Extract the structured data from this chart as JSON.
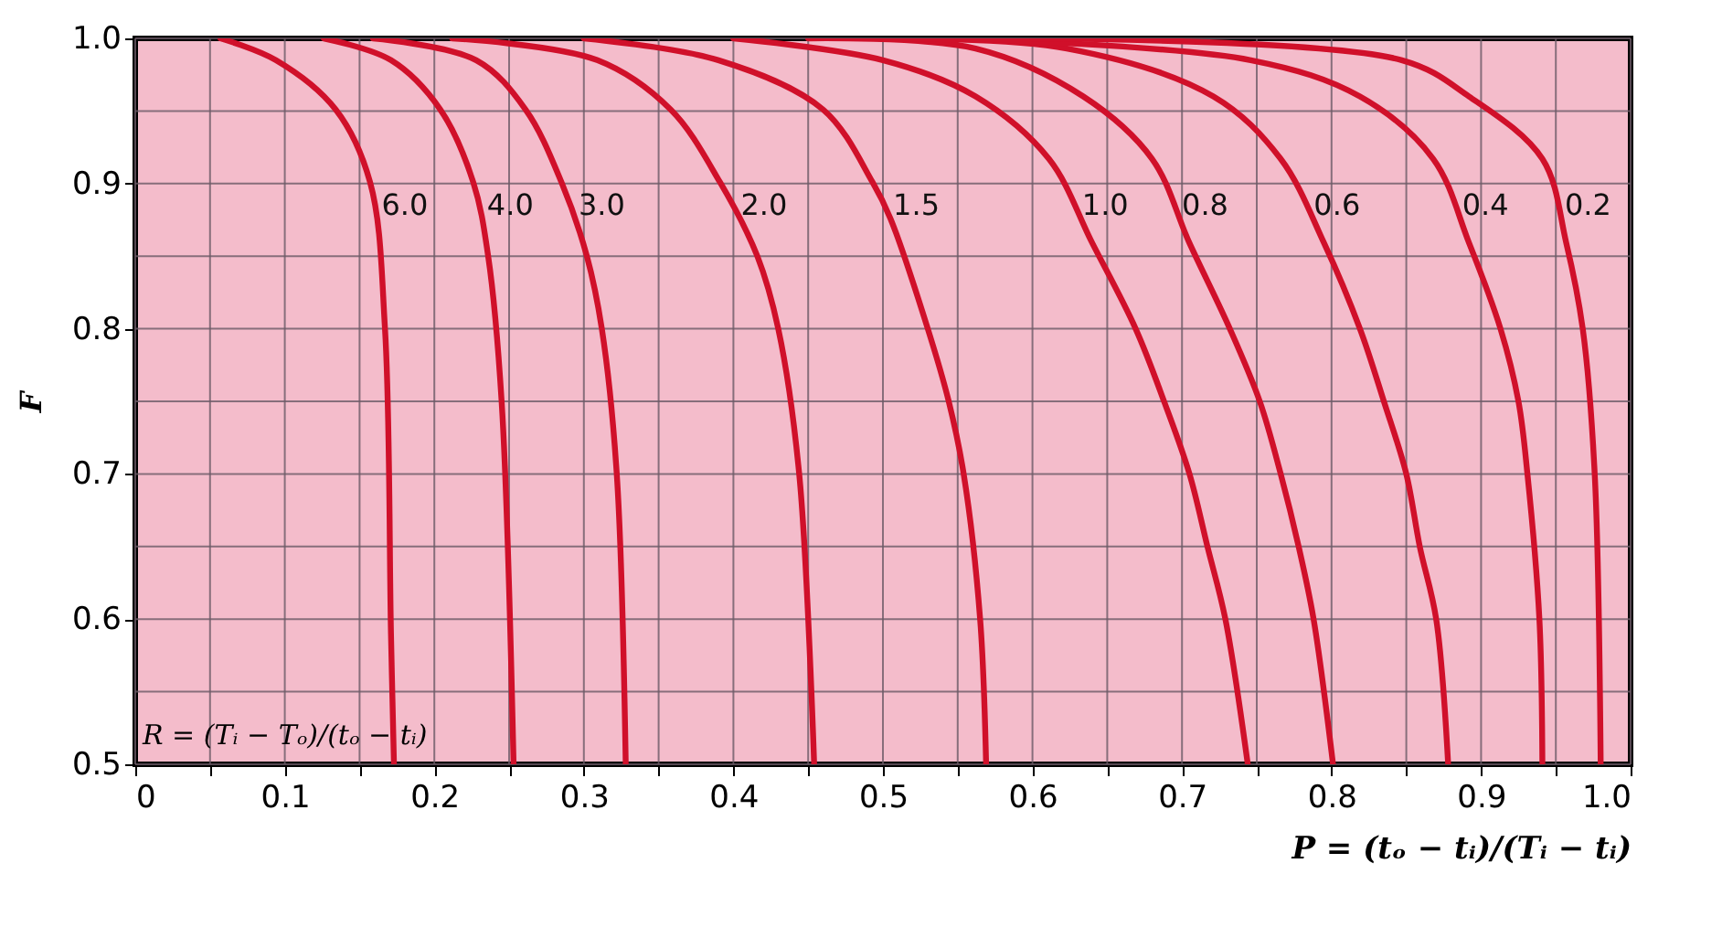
{
  "chart_data": {
    "type": "line",
    "xlabel": "P = (tₒ − tᵢ)/(Tᵢ − tᵢ)",
    "ylabel": "F",
    "annotations": [
      "R = (Tᵢ − Tₒ)/(tₒ − tᵢ)"
    ],
    "xlim": [
      0,
      1
    ],
    "ylim": [
      0.5,
      1
    ],
    "xticks": [
      0,
      {
        "value": 0.05,
        "label": null
      },
      0.1,
      {
        "value": 0.15,
        "label": null
      },
      0.2,
      {
        "value": 0.25,
        "label": null
      },
      0.3,
      {
        "value": 0.35,
        "label": null
      },
      0.4,
      {
        "value": 0.45,
        "label": null
      },
      0.5,
      {
        "value": 0.55,
        "label": null
      },
      0.6,
      {
        "value": 0.65,
        "label": null
      },
      0.7,
      {
        "value": 0.75,
        "label": null
      },
      0.8,
      {
        "value": 0.85,
        "label": null
      },
      0.9,
      {
        "value": 0.95,
        "label": null
      },
      {
        "value": 1,
        "label": "1.0"
      }
    ],
    "yticks": [
      0.5,
      {
        "value": 0.55,
        "label": null
      },
      0.6,
      {
        "value": 0.65,
        "label": null
      },
      0.7,
      {
        "value": 0.75,
        "label": null
      },
      0.8,
      {
        "value": 0.85,
        "label": null
      },
      0.9,
      {
        "value": 0.95,
        "label": null
      },
      {
        "value": 1,
        "label": "1.0"
      }
    ],
    "grid": true,
    "marker": "none",
    "line_style": "solid",
    "series": [
      {
        "name": "6.0",
        "color": "#d0102a",
        "x": [
          0.057,
          0.094,
          0.134,
          0.157,
          0.167,
          0.171,
          0.173
        ],
        "values": [
          1,
          0.985,
          0.951,
          0.901,
          0.8,
          0.59,
          0.5
        ]
      },
      {
        "name": "4.0",
        "color": "#d0102a",
        "x": [
          0.126,
          0.171,
          0.204,
          0.226,
          0.236,
          0.245,
          0.253
        ],
        "values": [
          1,
          0.985,
          0.951,
          0.901,
          0.85,
          0.75,
          0.5
        ]
      },
      {
        "name": "3.0",
        "color": "#d0102a",
        "x": [
          0.159,
          0.228,
          0.261,
          0.285,
          0.302,
          0.312,
          0.322,
          0.328
        ],
        "values": [
          1,
          0.985,
          0.951,
          0.901,
          0.85,
          0.8,
          0.7,
          0.5
        ]
      },
      {
        "name": "2.0",
        "color": "#d0102a",
        "x": [
          0.212,
          0.309,
          0.358,
          0.391,
          0.416,
          0.43,
          0.444,
          0.454
        ],
        "values": [
          1,
          0.985,
          0.951,
          0.901,
          0.85,
          0.8,
          0.7,
          0.5
        ]
      },
      {
        "name": "1.5",
        "color": "#d0102a",
        "x": [
          0.3,
          0.39,
          0.46,
          0.493,
          0.505,
          0.53,
          0.544,
          0.554,
          0.565,
          0.569
        ],
        "values": [
          1,
          0.985,
          0.951,
          0.901,
          0.876,
          0.8,
          0.75,
          0.7,
          0.6,
          0.5
        ]
      },
      {
        "name": "1.0",
        "color": "#d0102a",
        "x": [
          0.4,
          0.5,
          0.562,
          0.611,
          0.64,
          0.669,
          0.688,
          0.705,
          0.717,
          0.729,
          0.744
        ],
        "values": [
          1,
          0.985,
          0.96,
          0.917,
          0.859,
          0.8,
          0.75,
          0.7,
          0.65,
          0.6,
          0.5
        ]
      },
      {
        "name": "0.8",
        "color": "#d0102a",
        "x": [
          0.45,
          0.562,
          0.634,
          0.68,
          0.705,
          0.732,
          0.752,
          0.766,
          0.778,
          0.788,
          0.801
        ],
        "values": [
          1,
          0.993,
          0.96,
          0.917,
          0.859,
          0.8,
          0.75,
          0.7,
          0.65,
          0.6,
          0.5
        ]
      },
      {
        "name": "0.6",
        "color": "#d0102a",
        "x": [
          0.5,
          0.623,
          0.721,
          0.766,
          0.795,
          0.819,
          0.835,
          0.85,
          0.859,
          0.87,
          0.878
        ],
        "values": [
          1,
          0.993,
          0.96,
          0.917,
          0.859,
          0.8,
          0.75,
          0.7,
          0.65,
          0.6,
          0.5
        ]
      },
      {
        "name": "0.4",
        "color": "#d0102a",
        "x": [
          0.55,
          0.746,
          0.819,
          0.868,
          0.892,
          0.913,
          0.925,
          0.931,
          0.939,
          0.941
        ],
        "values": [
          1,
          0.985,
          0.96,
          0.917,
          0.859,
          0.8,
          0.75,
          0.7,
          0.6,
          0.5
        ]
      },
      {
        "name": "0.2",
        "color": "#d0102a",
        "x": [
          0.6,
          0.847,
          0.892,
          0.941,
          0.957,
          0.968,
          0.976,
          0.98
        ],
        "values": [
          1,
          0.985,
          0.96,
          0.917,
          0.859,
          0.8,
          0.7,
          0.5
        ]
      }
    ]
  }
}
